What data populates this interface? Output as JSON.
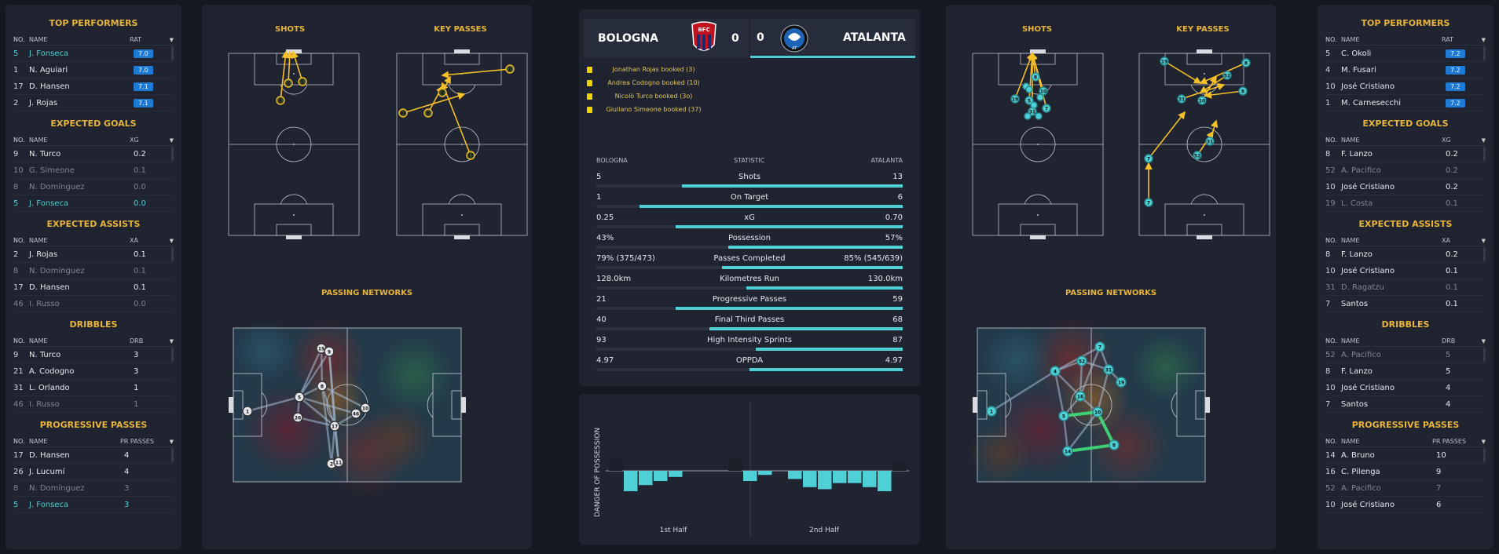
{
  "bologna": {
    "top_performers": {
      "title": "TOP PERFORMERS",
      "h_no": "NO.",
      "h_name": "NAME",
      "h_val": "RAT",
      "rows": [
        {
          "no": "5",
          "name": "J. Fonseca",
          "val": "7.0",
          "style": "hl"
        },
        {
          "no": "1",
          "name": "N. Aguiari",
          "val": "7.0",
          "style": ""
        },
        {
          "no": "17",
          "name": "D. Hansen",
          "val": "7.1",
          "style": ""
        },
        {
          "no": "2",
          "name": "J. Rojas",
          "val": "7.1",
          "style": ""
        }
      ]
    },
    "expected_goals": {
      "title": "EXPECTED GOALS",
      "h_no": "NO.",
      "h_name": "NAME",
      "h_val": "XG",
      "rows": [
        {
          "no": "9",
          "name": "N. Turco",
          "val": "0.2",
          "style": ""
        },
        {
          "no": "10",
          "name": "G. Simeone",
          "val": "0.1",
          "style": "dim"
        },
        {
          "no": "8",
          "name": "N. Domínguez",
          "val": "0.0",
          "style": "dim"
        },
        {
          "no": "5",
          "name": "J. Fonseca",
          "val": "0.0",
          "style": "hl"
        }
      ]
    },
    "expected_assists": {
      "title": "EXPECTED ASSISTS",
      "h_no": "NO.",
      "h_name": "NAME",
      "h_val": "XA",
      "rows": [
        {
          "no": "2",
          "name": "J. Rojas",
          "val": "0.1",
          "style": ""
        },
        {
          "no": "8",
          "name": "N. Domínguez",
          "val": "0.1",
          "style": "dim"
        },
        {
          "no": "17",
          "name": "D. Hansen",
          "val": "0.1",
          "style": ""
        },
        {
          "no": "46",
          "name": "I. Russo",
          "val": "0.0",
          "style": "dim"
        }
      ]
    },
    "dribbles": {
      "title": "DRIBBLES",
      "h_no": "NO.",
      "h_name": "NAME",
      "h_val": "DRB",
      "rows": [
        {
          "no": "9",
          "name": "N. Turco",
          "val": "3",
          "style": ""
        },
        {
          "no": "21",
          "name": "A. Codogno",
          "val": "3",
          "style": ""
        },
        {
          "no": "31",
          "name": "L. Orlando",
          "val": "1",
          "style": ""
        },
        {
          "no": "46",
          "name": "I. Russo",
          "val": "1",
          "style": "dim"
        }
      ]
    },
    "progressive_passes": {
      "title": "PROGRESSIVE PASSES",
      "h_no": "NO.",
      "h_name": "NAME",
      "h_val": "PR PASSES",
      "rows": [
        {
          "no": "17",
          "name": "D. Hansen",
          "val": "4",
          "style": ""
        },
        {
          "no": "26",
          "name": "J. Lucumí",
          "val": "4",
          "style": ""
        },
        {
          "no": "8",
          "name": "N. Domínguez",
          "val": "3",
          "style": "dim"
        },
        {
          "no": "5",
          "name": "J. Fonseca",
          "val": "3",
          "style": "hl"
        }
      ]
    },
    "shots_title": "SHOTS",
    "key_passes_title": "KEY PASSES",
    "passing_networks_title": "PASSING NETWORKS",
    "shot_labels": [
      "8",
      "6",
      "5"
    ],
    "key_pass_labels": [
      "2",
      "8",
      "46",
      "8",
      "17"
    ],
    "network_labels": [
      "19",
      "9",
      "8",
      "5",
      "26",
      "17",
      "46",
      "10",
      "1",
      "2",
      "11"
    ]
  },
  "atalanta": {
    "top_performers": {
      "title": "TOP PERFORMERS",
      "h_no": "NO.",
      "h_name": "NAME",
      "h_val": "RAT",
      "rows": [
        {
          "no": "5",
          "name": "C. Okoli",
          "val": "7.2",
          "style": ""
        },
        {
          "no": "4",
          "name": "M. Fusari",
          "val": "7.2",
          "style": ""
        },
        {
          "no": "10",
          "name": "José Cristiano",
          "val": "7.2",
          "style": ""
        },
        {
          "no": "1",
          "name": "M. Carnesecchi",
          "val": "7.2",
          "style": ""
        }
      ]
    },
    "expected_goals": {
      "title": "EXPECTED GOALS",
      "h_no": "NO.",
      "h_name": "NAME",
      "h_val": "XG",
      "rows": [
        {
          "no": "8",
          "name": "F. Lanzo",
          "val": "0.2",
          "style": ""
        },
        {
          "no": "52",
          "name": "A. Pacifico",
          "val": "0.2",
          "style": "dim"
        },
        {
          "no": "10",
          "name": "José Cristiano",
          "val": "0.2",
          "style": ""
        },
        {
          "no": "19",
          "name": "L. Costa",
          "val": "0.1",
          "style": "dim"
        }
      ]
    },
    "expected_assists": {
      "title": "EXPECTED ASSISTS",
      "h_no": "NO.",
      "h_name": "NAME",
      "h_val": "XA",
      "rows": [
        {
          "no": "8",
          "name": "F. Lanzo",
          "val": "0.2",
          "style": ""
        },
        {
          "no": "10",
          "name": "José Cristiano",
          "val": "0.1",
          "style": ""
        },
        {
          "no": "31",
          "name": "D. Ragatzu",
          "val": "0.1",
          "style": "dim"
        },
        {
          "no": "7",
          "name": "Santos",
          "val": "0.1",
          "style": ""
        }
      ]
    },
    "dribbles": {
      "title": "DRIBBLES",
      "h_no": "NO.",
      "h_name": "NAME",
      "h_val": "DRB",
      "rows": [
        {
          "no": "52",
          "name": "A. Pacifico",
          "val": "5",
          "style": "dim"
        },
        {
          "no": "8",
          "name": "F. Lanzo",
          "val": "5",
          "style": ""
        },
        {
          "no": "10",
          "name": "José Cristiano",
          "val": "4",
          "style": ""
        },
        {
          "no": "7",
          "name": "Santos",
          "val": "4",
          "style": ""
        }
      ]
    },
    "progressive_passes": {
      "title": "PROGRESSIVE PASSES",
      "h_no": "NO.",
      "h_name": "NAME",
      "h_val": "PR PASSES",
      "rows": [
        {
          "no": "14",
          "name": "A. Bruno",
          "val": "10",
          "style": ""
        },
        {
          "no": "16",
          "name": "C. Pilenga",
          "val": "9",
          "style": ""
        },
        {
          "no": "52",
          "name": "A. Pacifico",
          "val": "7",
          "style": "dim"
        },
        {
          "no": "10",
          "name": "José Cristiano",
          "val": "6",
          "style": ""
        }
      ]
    },
    "shots_title": "SHOTS",
    "key_passes_title": "KEY PASSES",
    "passing_networks_title": "PASSING NETWORKS",
    "shot_labels": [
      "5",
      "8",
      "10",
      "19",
      "31",
      "7"
    ],
    "key_pass_labels": [
      "19",
      "8",
      "52",
      "8",
      "31",
      "10",
      "52",
      "31",
      "7",
      "7"
    ],
    "network_labels": [
      "7",
      "52",
      "4",
      "31",
      "19",
      "16",
      "10",
      "5",
      "1",
      "14",
      "8"
    ]
  },
  "match": {
    "home": "BOLOGNA",
    "away": "ATALANTA",
    "home_score": "0",
    "away_score": "0",
    "home_badge": "BFC",
    "away_badge": "AT",
    "bookings": [
      "Jonathan Rojas booked (3)",
      "Andrea Codogno booked (10)",
      "Nicolò Turco booked (3o)",
      "Giuliano Simeone booked (37)"
    ],
    "stat_header": {
      "home": "BOLOGNA",
      "mid": "STATISTIC",
      "away": "ATALANTA"
    },
    "stats": [
      {
        "home": "5",
        "label": "Shots",
        "away": "13",
        "home_frac": 0.28,
        "away_frac": 0.72
      },
      {
        "home": "1",
        "label": "On Target",
        "away": "6",
        "home_frac": 0.14,
        "away_frac": 0.86
      },
      {
        "home": "0.25",
        "label": "xG",
        "away": "0.70",
        "home_frac": 0.26,
        "away_frac": 0.74
      },
      {
        "home": "43%",
        "label": "Possession",
        "away": "57%",
        "home_frac": 0.43,
        "away_frac": 0.57
      },
      {
        "home": "79% (375/473)",
        "label": "Passes Completed",
        "away": "85% (545/639)",
        "home_frac": 0.41,
        "away_frac": 0.59
      },
      {
        "home": "128.0km",
        "label": "Kilometres Run",
        "away": "130.0km",
        "home_frac": 0.49,
        "away_frac": 0.51
      },
      {
        "home": "21",
        "label": "Progressive Passes",
        "away": "59",
        "home_frac": 0.26,
        "away_frac": 0.74
      },
      {
        "home": "40",
        "label": "Final Third Passes",
        "away": "68",
        "home_frac": 0.37,
        "away_frac": 0.63
      },
      {
        "home": "93",
        "label": "High Intensity Sprints",
        "away": "87",
        "home_frac": 0.52,
        "away_frac": 0.48
      },
      {
        "home": "4.97",
        "label": "OPPDA",
        "away": "4.97",
        "home_frac": 0.5,
        "away_frac": 0.5
      }
    ],
    "danger": {
      "ylabel": "DANGER OF POSSESSION",
      "first_half": "1st Half",
      "second_half": "2nd Half",
      "values": [
        0.6,
        -1.0,
        -0.7,
        -0.5,
        -0.3,
        0,
        0,
        0,
        0.6,
        -0.5,
        -0.2,
        0,
        -0.4,
        -0.8,
        -0.9,
        -0.6,
        -0.6,
        -0.8,
        -1.0,
        0.5
      ]
    },
    "colors": {
      "accent": "#e8b43a",
      "teal": "#4fd0d6",
      "panel": "#1f2430",
      "bg": "#141821",
      "rating": "#1d7bd6"
    }
  }
}
